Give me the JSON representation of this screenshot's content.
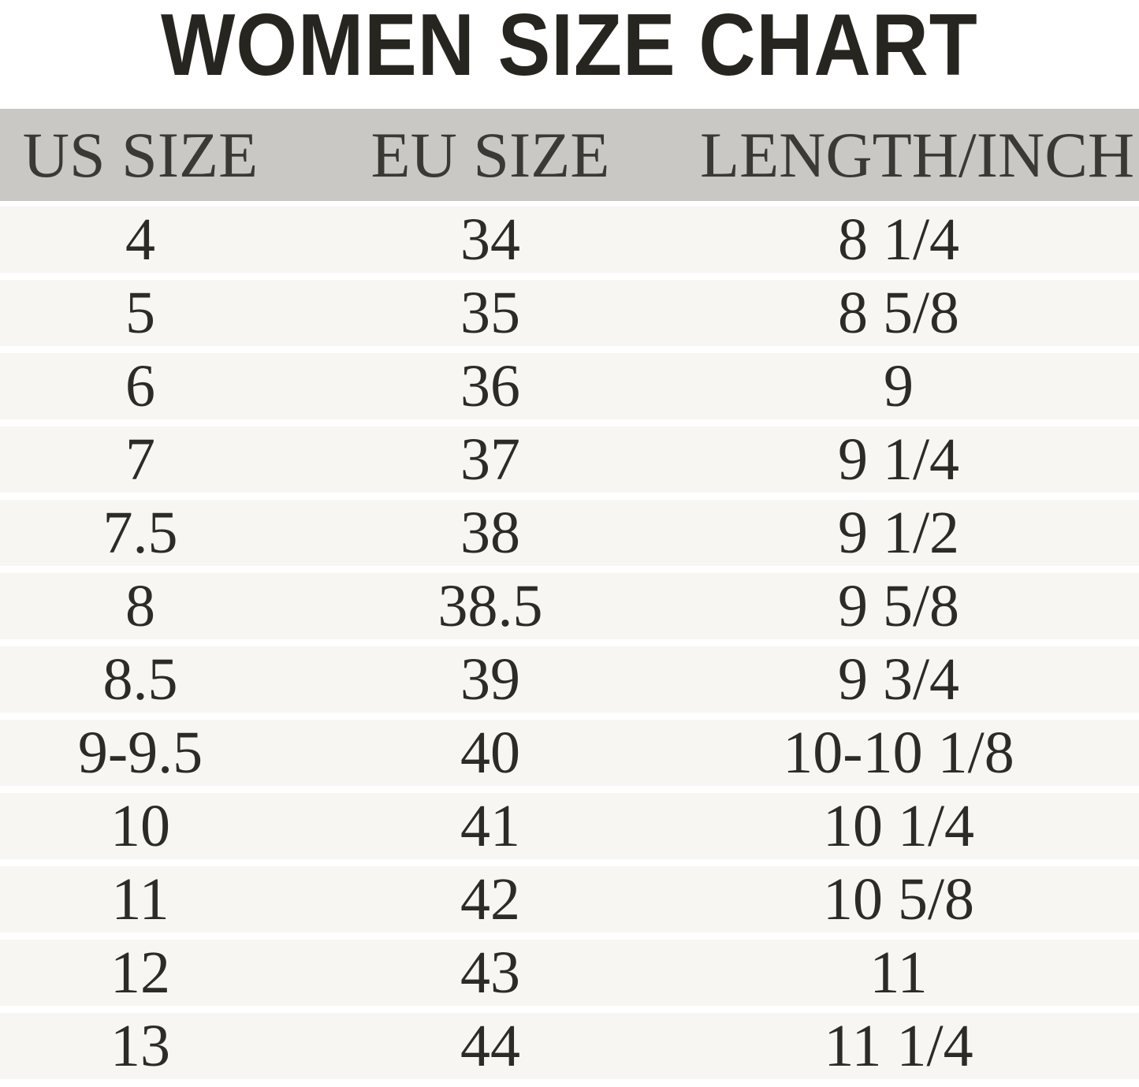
{
  "title": "WOMEN SIZE CHART",
  "colors": {
    "title-color": "#26251f",
    "header-bg": "#c9c8c5",
    "header-text": "#3a3933",
    "row-bg": "#f7f6f3",
    "cell-text": "#2c2b27",
    "page-bg": "#ffffff"
  },
  "chart_data": {
    "type": "table",
    "title": "WOMEN SIZE CHART",
    "columns": [
      "US SIZE",
      "EU SIZE",
      "LENGTH/INCH"
    ],
    "rows": [
      [
        "4",
        "34",
        "8 1/4"
      ],
      [
        "5",
        "35",
        "8 5/8"
      ],
      [
        "6",
        "36",
        "9"
      ],
      [
        "7",
        "37",
        "9 1/4"
      ],
      [
        "7.5",
        "38",
        "9 1/2"
      ],
      [
        "8",
        "38.5",
        "9 5/8"
      ],
      [
        "8.5",
        "39",
        "9 3/4"
      ],
      [
        "9-9.5",
        "40",
        "10-10 1/8"
      ],
      [
        "10",
        "41",
        "10 1/4"
      ],
      [
        "11",
        "42",
        "10 5/8"
      ],
      [
        "12",
        "43",
        "11"
      ],
      [
        "13",
        "44",
        "11 1/4"
      ]
    ],
    "layout": {
      "header_background": "#c9c8c5",
      "row_background": "#f7f6f3",
      "row_separator": "#ffffff",
      "grid": "horizontal-bands"
    }
  }
}
